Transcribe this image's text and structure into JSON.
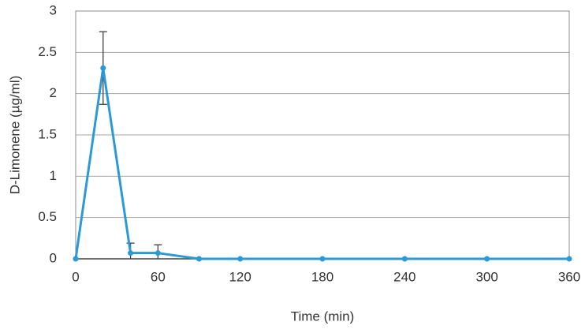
{
  "chart_data": {
    "type": "line",
    "x_label": "Time (min)",
    "y_label": "D-Limonene (µg/ml)",
    "x": [
      0,
      20,
      40,
      60,
      90,
      120,
      180,
      240,
      300,
      360
    ],
    "series": [
      {
        "color": "#2a9ad6",
        "values": [
          0,
          2.31,
          0.07,
          0.07,
          0,
          0,
          0,
          0,
          0,
          0
        ],
        "errors": [
          0,
          0.44,
          0.12,
          0.1,
          0,
          0,
          0,
          0,
          0,
          0
        ]
      }
    ],
    "xlim": [
      0,
      360
    ],
    "xticks": [
      0,
      60,
      120,
      180,
      240,
      300,
      360
    ],
    "ylim": [
      0,
      3
    ],
    "yticks": [
      0,
      0.5,
      1,
      1.5,
      2,
      2.5,
      3
    ],
    "grid": true
  }
}
